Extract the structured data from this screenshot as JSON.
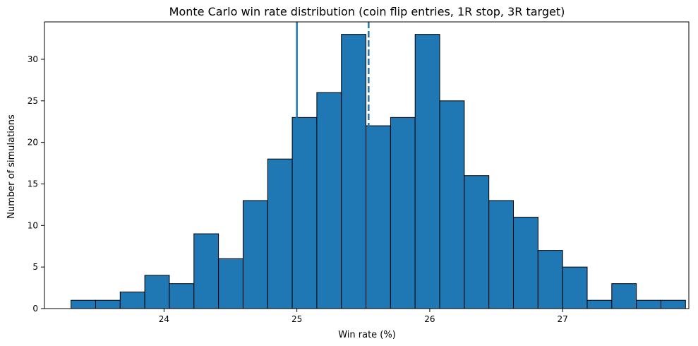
{
  "chart_data": {
    "type": "bar",
    "title": "Monte Carlo win rate distribution (coin flip entries, 1R stop, 3R target)",
    "xlabel": "Win rate (%)",
    "ylabel": "Number of simulations",
    "bin_start": 23.3,
    "bin_width": 0.185,
    "counts": [
      1,
      1,
      2,
      4,
      3,
      9,
      6,
      13,
      18,
      23,
      26,
      33,
      22,
      23,
      33,
      25,
      16,
      13,
      11,
      7,
      5,
      1,
      3,
      1,
      1
    ],
    "xlim": [
      23.1,
      27.95
    ],
    "ylim": [
      0,
      34.5
    ],
    "xticks": [
      24,
      25,
      26,
      27
    ],
    "yticks": [
      0,
      5,
      10,
      15,
      20,
      25,
      30
    ],
    "vlines": [
      {
        "x": 25.0,
        "style": "solid"
      },
      {
        "x": 25.54,
        "style": "dashed"
      }
    ],
    "grid": false,
    "colors": {
      "bar": "#1f77b4",
      "edge": "#000000",
      "line": "#1f77b4"
    }
  }
}
